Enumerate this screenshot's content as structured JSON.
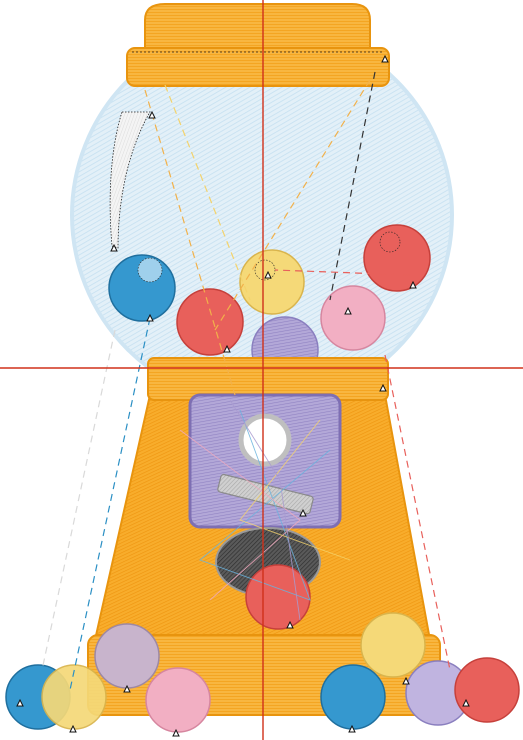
{
  "design": {
    "kind": "embroidery-preview",
    "subject": "gumball-machine",
    "colors": {
      "background": "#ffffff",
      "cap": "#f4a623",
      "cap_light": "#fbc55a",
      "globe": "#dcecf6",
      "globe_stroke": "#b9d9ee",
      "base": "#f6a21e",
      "panel": "#a99bd0",
      "panel_dark": "#7e6fb3",
      "chute": "#4a4a4a",
      "guide": "#d0311a",
      "jump_dash_gray": "#bcbcbc"
    },
    "gumball_colors": {
      "blue": "#2a8fc4",
      "red": "#e25a55",
      "yellow": "#f4d36c",
      "pink": "#f0a8bd",
      "lavender": "#b8aedb",
      "light_blue": "#9fd0ec"
    }
  }
}
